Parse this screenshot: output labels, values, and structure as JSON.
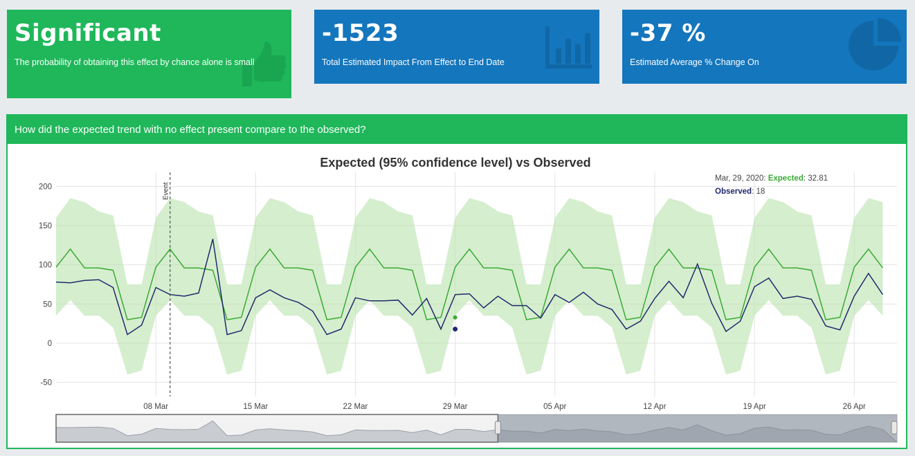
{
  "cards": [
    {
      "value": "Significant",
      "description": "The probability of obtaining this effect by chance alone is small",
      "icon": "thumbs-up-icon",
      "color": "#1fb75a"
    },
    {
      "value": "-1523",
      "description": "Total Estimated Impact From Effect to End Date",
      "icon": "bar-chart-icon",
      "color": "#1476bd"
    },
    {
      "value": "-37 %",
      "description": "Estimated Average % Change On",
      "icon": "pie-chart-icon",
      "color": "#1476bd"
    }
  ],
  "panel": {
    "title": "How did the expected trend with no effect present compare to the observed?"
  },
  "chart_data": {
    "type": "line",
    "title": "Expected (95% confidence level) vs Observed",
    "x_start": "2020-03-01",
    "x_end": "2020-04-29",
    "x_tick_labels": [
      "08 Mar",
      "15 Mar",
      "22 Mar",
      "29 Mar",
      "05 Apr",
      "12 Apr",
      "19 Apr",
      "26 Apr"
    ],
    "x_tick_dates": [
      "2020-03-08",
      "2020-03-15",
      "2020-03-22",
      "2020-03-29",
      "2020-04-05",
      "2020-04-12",
      "2020-04-19",
      "2020-04-26"
    ],
    "y_ticks": [
      200,
      150,
      100,
      50,
      0,
      -50
    ],
    "ylim": [
      -68,
      218
    ],
    "grid": true,
    "event": {
      "label": "Event",
      "date": "2020-03-09"
    },
    "series": [
      {
        "name": "Expected",
        "color": "#3aaa35",
        "values": [
          97,
          120,
          96,
          96,
          93,
          30,
          33,
          97,
          120,
          96,
          96,
          93,
          30,
          33,
          97,
          120,
          96,
          96,
          93,
          30,
          33,
          97,
          120,
          96,
          96,
          93,
          30,
          33,
          97,
          120,
          96,
          96,
          93,
          30,
          33,
          97,
          120,
          96,
          96,
          93,
          30,
          33,
          97,
          120,
          96,
          96,
          93,
          30,
          33,
          97,
          120,
          96,
          96,
          93,
          30,
          33,
          97,
          120,
          96
        ]
      },
      {
        "name": "Observed",
        "color": "#1f2a6b",
        "values": [
          78,
          77,
          80,
          81,
          71,
          11,
          23,
          71,
          62,
          60,
          64,
          133,
          11,
          16,
          58,
          68,
          58,
          52,
          41,
          11,
          18,
          58,
          54,
          54,
          55,
          36,
          57,
          18,
          62,
          63,
          45,
          60,
          48,
          48,
          32,
          62,
          52,
          65,
          50,
          43,
          18,
          28,
          57,
          79,
          58,
          101,
          51,
          15,
          28,
          72,
          83,
          57,
          60,
          56,
          22,
          17,
          60,
          89,
          62
        ]
      }
    ],
    "band": {
      "name": "95% confidence interval",
      "color": "#b9e3ad",
      "upper": [
        160,
        185,
        180,
        168,
        163,
        75,
        75,
        160,
        185,
        180,
        168,
        163,
        75,
        75,
        160,
        185,
        180,
        168,
        163,
        75,
        75,
        160,
        185,
        180,
        168,
        163,
        75,
        75,
        160,
        185,
        180,
        168,
        163,
        75,
        75,
        160,
        185,
        180,
        168,
        163,
        75,
        75,
        160,
        185,
        180,
        168,
        163,
        75,
        75,
        160,
        185,
        180,
        168,
        163,
        75,
        75,
        160,
        185,
        180
      ],
      "lower": [
        35,
        55,
        35,
        35,
        20,
        -40,
        -35,
        35,
        55,
        35,
        35,
        20,
        -40,
        -35,
        35,
        55,
        35,
        35,
        20,
        -40,
        -35,
        35,
        55,
        35,
        35,
        20,
        -40,
        -35,
        35,
        55,
        35,
        35,
        20,
        -40,
        -35,
        35,
        55,
        35,
        35,
        20,
        -40,
        -35,
        35,
        55,
        35,
        35,
        20,
        -40,
        -35,
        35,
        55,
        35,
        35,
        20,
        -40,
        -35,
        35,
        55,
        35
      ]
    },
    "tooltip": {
      "date_label": "Mar, 29, 2020:",
      "expected_label": "Expected",
      "expected_value": "32.81",
      "observed_label": "Observed",
      "observed_value": "18",
      "date": "2020-03-29"
    }
  }
}
